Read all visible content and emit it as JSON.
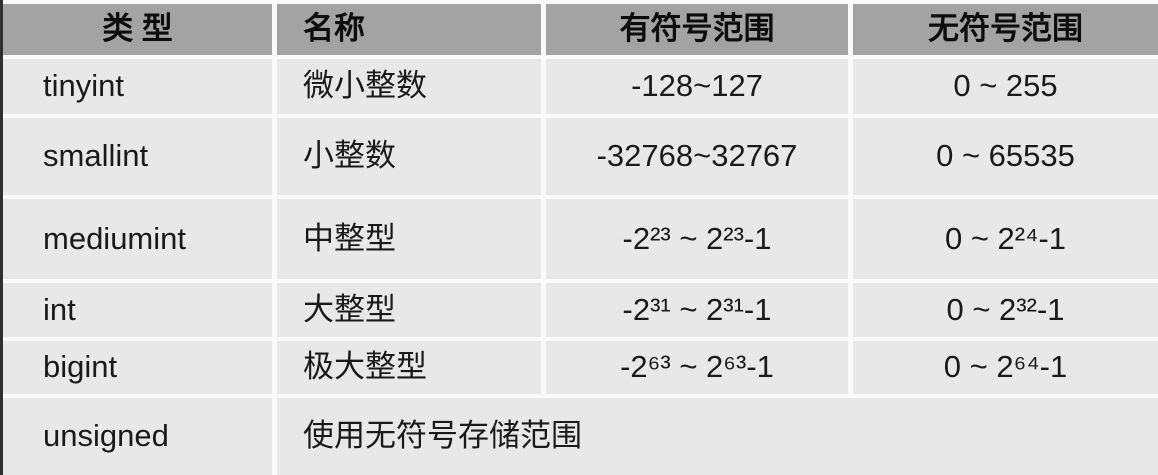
{
  "table": {
    "title_semantic": "mysql-integer-types-table",
    "headers": [
      "类 型",
      "名称",
      "有符号范围",
      "无符号范围"
    ],
    "rows": [
      {
        "type": "tinyint",
        "name": "微小整数",
        "signed": "-128~127",
        "unsigned": "0 ~ 255"
      },
      {
        "type": "smallint",
        "name": "小整数",
        "signed": "-32768~32767",
        "unsigned": "0 ~ 65535"
      },
      {
        "type": "mediumint",
        "name": "中整型",
        "signed": "-2²³ ~ 2²³-1",
        "unsigned": "0 ~ 2²⁴-1"
      },
      {
        "type": "int",
        "name": "大整型",
        "signed": "-2³¹ ~ 2³¹-1",
        "unsigned": "0 ~ 2³²-1"
      },
      {
        "type": "bigint",
        "name": "极大整型",
        "signed": "-2⁶³ ~ 2⁶³-1",
        "unsigned": "0 ~ 2⁶⁴-1"
      }
    ],
    "footer": {
      "type": "unsigned",
      "description": "使用无符号存储范围"
    }
  },
  "colors": {
    "header_bg": "#a3a3a3",
    "row_bg": "#e8e8e8",
    "gap": "#fafafa",
    "border": "#2f2f2f",
    "text": "#1a1a1a"
  }
}
